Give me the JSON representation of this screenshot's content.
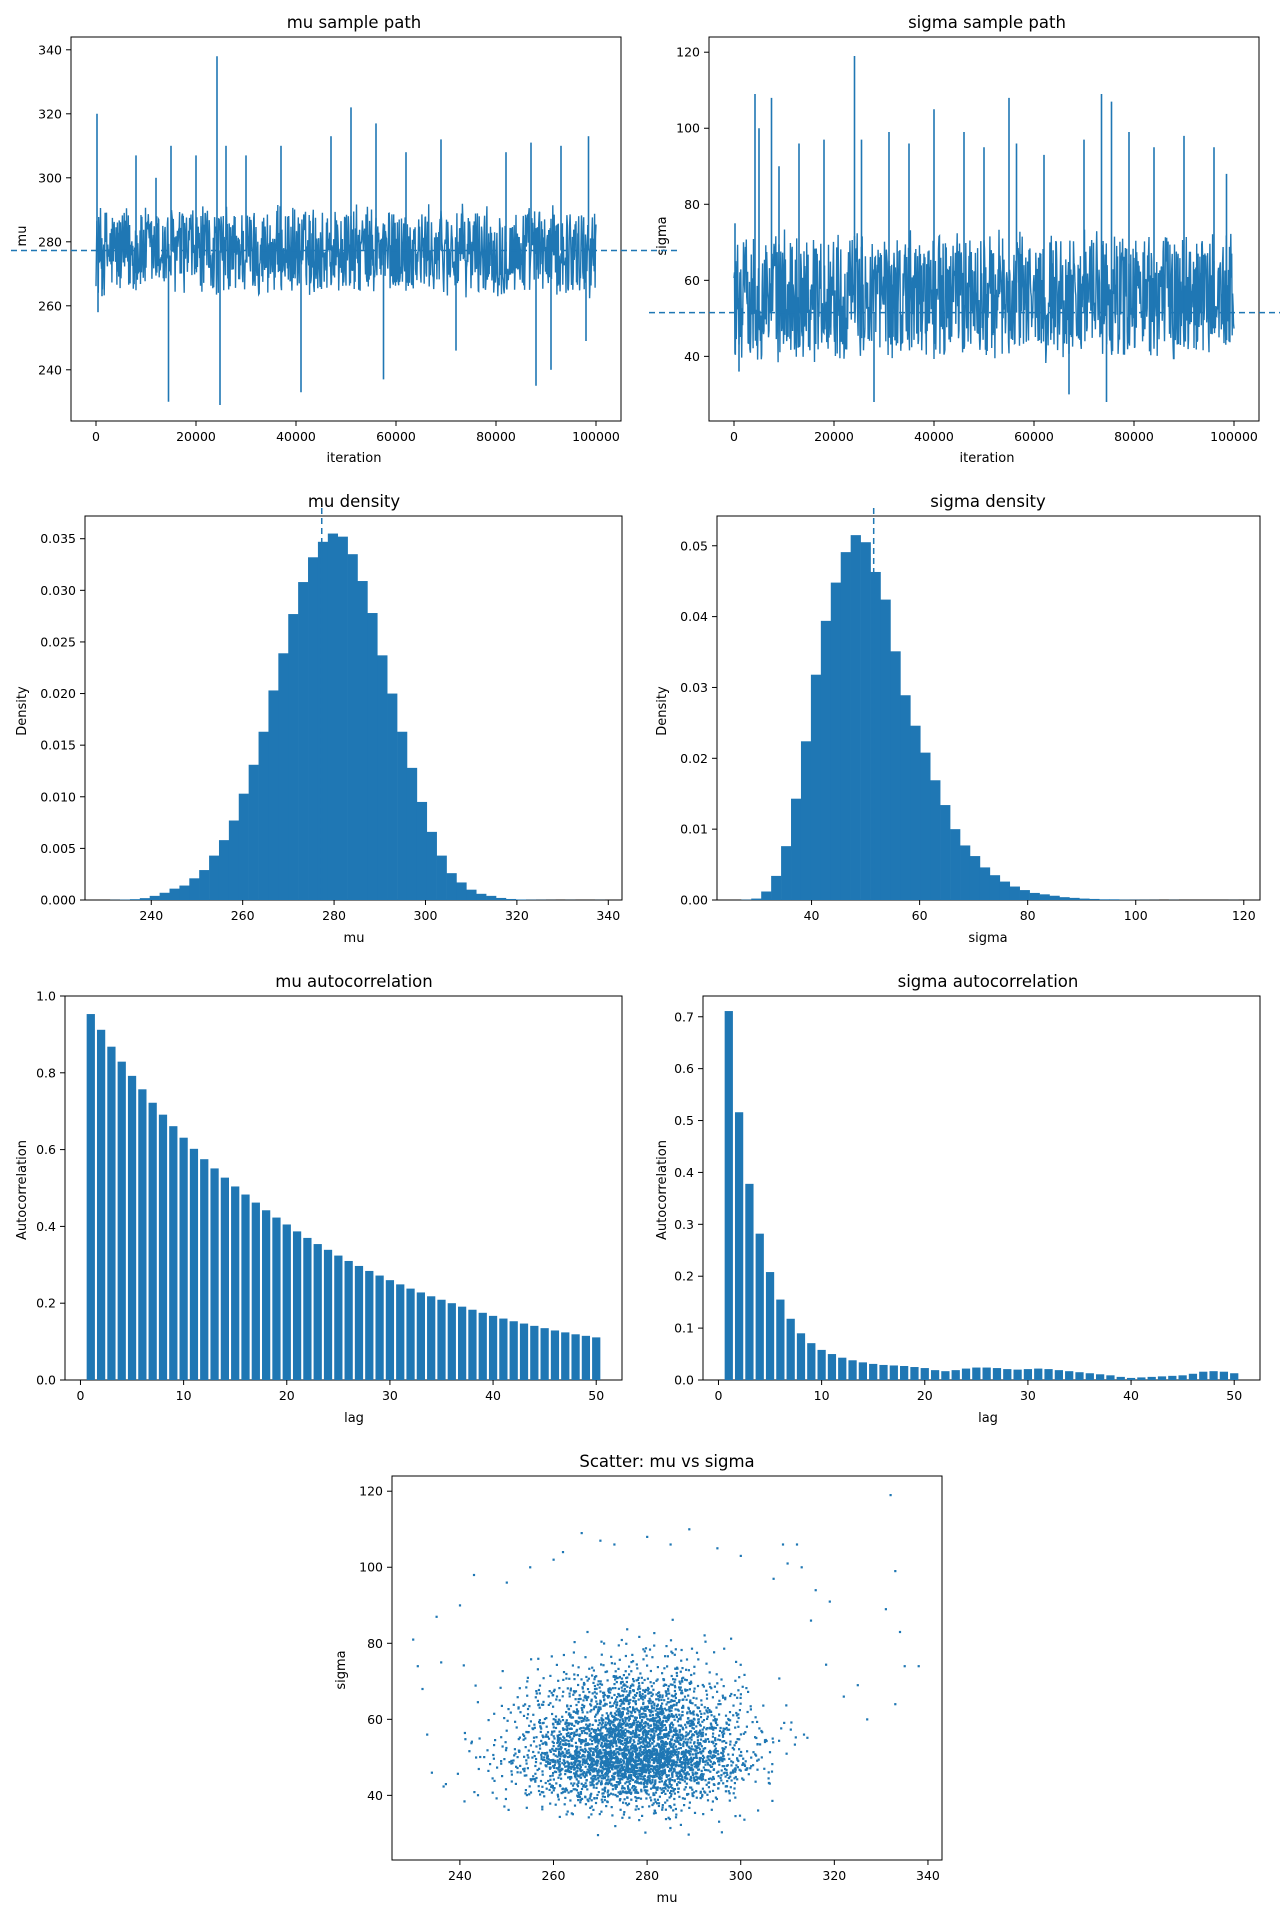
{
  "chart_data": [
    {
      "type": "line",
      "title": "mu sample path",
      "xlabel": "iteration",
      "ylabel": "mu",
      "xlim": [
        -5000,
        105000
      ],
      "ylim": [
        224,
        344
      ],
      "xticks": [
        0,
        20000,
        40000,
        60000,
        80000,
        100000
      ],
      "yticks": [
        240,
        260,
        280,
        300,
        320,
        340
      ],
      "mean": 277.3,
      "band": {
        "lo": 262,
        "hi": 292
      },
      "spikes": [
        [
          200,
          320
        ],
        [
          400,
          258
        ],
        [
          1200,
          263
        ],
        [
          8000,
          307
        ],
        [
          12000,
          300
        ],
        [
          15000,
          310
        ],
        [
          14500,
          230
        ],
        [
          20000,
          307
        ],
        [
          24200,
          338
        ],
        [
          24800,
          229
        ],
        [
          26000,
          310
        ],
        [
          30000,
          307
        ],
        [
          37000,
          310
        ],
        [
          41000,
          233
        ],
        [
          47000,
          313
        ],
        [
          51000,
          322
        ],
        [
          56000,
          317
        ],
        [
          57500,
          237
        ],
        [
          62000,
          308
        ],
        [
          69000,
          312
        ],
        [
          72000,
          246
        ],
        [
          82000,
          308
        ],
        [
          87000,
          311
        ],
        [
          88000,
          235
        ],
        [
          91000,
          240
        ],
        [
          93000,
          310
        ],
        [
          98500,
          313
        ],
        [
          98000,
          249
        ]
      ],
      "n_iter": 100000
    },
    {
      "type": "line",
      "title": "sigma sample path",
      "xlabel": "iteration",
      "ylabel": "sigma",
      "xlim": [
        -5000,
        105000
      ],
      "ylim": [
        23,
        124
      ],
      "xticks": [
        0,
        20000,
        40000,
        60000,
        80000,
        100000
      ],
      "yticks": [
        40,
        60,
        80,
        100,
        120
      ],
      "mean": 51.5,
      "band": {
        "lo": 38,
        "hi": 74
      },
      "spikes": [
        [
          200,
          75
        ],
        [
          1000,
          36
        ],
        [
          4200,
          109
        ],
        [
          5000,
          100
        ],
        [
          7500,
          108
        ],
        [
          9000,
          90
        ],
        [
          13000,
          96
        ],
        [
          18000,
          97
        ],
        [
          24100,
          119
        ],
        [
          25500,
          97
        ],
        [
          28000,
          28
        ],
        [
          31000,
          99
        ],
        [
          35000,
          96
        ],
        [
          40000,
          105
        ],
        [
          46000,
          99
        ],
        [
          50000,
          95
        ],
        [
          55000,
          108
        ],
        [
          56500,
          96
        ],
        [
          62000,
          93
        ],
        [
          67000,
          30
        ],
        [
          70000,
          97
        ],
        [
          73500,
          109
        ],
        [
          74500,
          28
        ],
        [
          75500,
          107
        ],
        [
          79000,
          99
        ],
        [
          84000,
          95
        ],
        [
          90000,
          98
        ],
        [
          96000,
          95
        ],
        [
          98500,
          88
        ]
      ],
      "n_iter": 100000
    },
    {
      "type": "bar",
      "title": "mu density",
      "xlabel": "mu",
      "ylabel": "Density",
      "xlim": [
        225.5,
        343
      ],
      "ylim": [
        0,
        0.0372
      ],
      "xticks": [
        240,
        260,
        280,
        300,
        320,
        340
      ],
      "yticks": [
        0.0,
        0.005,
        0.01,
        0.015,
        0.02,
        0.025,
        0.03,
        0.035
      ],
      "ytick_labels": [
        "0.000",
        "0.005",
        "0.010",
        "0.015",
        "0.020",
        "0.025",
        "0.030",
        "0.035"
      ],
      "bin_start": 231.0,
      "bin_width": 2.165,
      "values": [
        2e-05,
        4e-05,
        8e-05,
        0.00018,
        0.0004,
        0.0007,
        0.0011,
        0.0014,
        0.0021,
        0.0029,
        0.0043,
        0.0058,
        0.0077,
        0.0103,
        0.0131,
        0.0163,
        0.0203,
        0.0239,
        0.0277,
        0.0308,
        0.0332,
        0.0347,
        0.0355,
        0.0352,
        0.0335,
        0.0309,
        0.0278,
        0.0237,
        0.02,
        0.0163,
        0.0128,
        0.0095,
        0.0066,
        0.0043,
        0.0026,
        0.0017,
        0.001,
        0.0006,
        0.0004,
        0.0002,
        0.0001,
        5e-05,
        3e-05,
        2e-05,
        1e-05,
        0.0,
        1e-05,
        0.0,
        0.0,
        1e-05
      ],
      "mean": 277.3
    },
    {
      "type": "bar",
      "title": "sigma density",
      "xlabel": "sigma",
      "ylabel": "Density",
      "xlim": [
        22.5,
        123
      ],
      "ylim": [
        0,
        0.0542
      ],
      "xticks": [
        40,
        60,
        80,
        100,
        120
      ],
      "yticks": [
        0.0,
        0.01,
        0.02,
        0.03,
        0.04,
        0.05
      ],
      "ytick_labels": [
        "0.00",
        "0.01",
        "0.02",
        "0.03",
        "0.04",
        "0.05"
      ],
      "bin_start": 27.0,
      "bin_width": 1.84,
      "values": [
        5e-05,
        0.0002,
        0.0012,
        0.0034,
        0.0076,
        0.0143,
        0.0224,
        0.0318,
        0.0394,
        0.0448,
        0.0491,
        0.0515,
        0.0505,
        0.0463,
        0.0424,
        0.0351,
        0.0289,
        0.0246,
        0.0208,
        0.0169,
        0.0134,
        0.01,
        0.0077,
        0.0062,
        0.0046,
        0.0035,
        0.0026,
        0.0019,
        0.0014,
        0.001,
        0.0008,
        0.0006,
        0.0004,
        0.0003,
        0.0002,
        0.00015,
        0.0001,
        0.0001,
        5e-05,
        4e-05,
        3e-05,
        2e-05,
        0.0,
        2e-05,
        0.0,
        0.0,
        0.0,
        0.0,
        0.0,
        1e-05
      ],
      "mean": 51.5
    },
    {
      "type": "bar",
      "title": "mu autocorrelation",
      "xlabel": "lag",
      "ylabel": "Autocorrelation",
      "xlim": [
        -1.5,
        52.5
      ],
      "ylim": [
        0,
        1.0
      ],
      "xticks": [
        0,
        10,
        20,
        30,
        40,
        50
      ],
      "yticks": [
        0.0,
        0.2,
        0.4,
        0.6,
        0.8,
        1.0
      ],
      "ytick_labels": [
        "0.0",
        "0.2",
        "0.4",
        "0.6",
        "0.8",
        "1.0"
      ],
      "lags": [
        1,
        2,
        3,
        4,
        5,
        6,
        7,
        8,
        9,
        10,
        11,
        12,
        13,
        14,
        15,
        16,
        17,
        18,
        19,
        20,
        21,
        22,
        23,
        24,
        25,
        26,
        27,
        28,
        29,
        30,
        31,
        32,
        33,
        34,
        35,
        36,
        37,
        38,
        39,
        40,
        41,
        42,
        43,
        44,
        45,
        46,
        47,
        48,
        49,
        50
      ],
      "values": [
        0.953,
        0.912,
        0.868,
        0.829,
        0.792,
        0.757,
        0.722,
        0.691,
        0.661,
        0.631,
        0.602,
        0.575,
        0.551,
        0.527,
        0.504,
        0.483,
        0.462,
        0.442,
        0.423,
        0.405,
        0.387,
        0.37,
        0.354,
        0.339,
        0.324,
        0.31,
        0.297,
        0.284,
        0.272,
        0.26,
        0.249,
        0.238,
        0.228,
        0.218,
        0.209,
        0.2,
        0.191,
        0.183,
        0.175,
        0.167,
        0.16,
        0.153,
        0.147,
        0.141,
        0.135,
        0.129,
        0.124,
        0.119,
        0.115,
        0.111
      ]
    },
    {
      "type": "bar",
      "title": "sigma autocorrelation",
      "xlabel": "lag",
      "ylabel": "Autocorrelation",
      "xlim": [
        -1.5,
        52.5
      ],
      "ylim": [
        0,
        0.74
      ],
      "xticks": [
        0,
        10,
        20,
        30,
        40,
        50
      ],
      "yticks": [
        0.0,
        0.1,
        0.2,
        0.3,
        0.4,
        0.5,
        0.6,
        0.7
      ],
      "ytick_labels": [
        "0.0",
        "0.1",
        "0.2",
        "0.3",
        "0.4",
        "0.5",
        "0.6",
        "0.7"
      ],
      "lags": [
        1,
        2,
        3,
        4,
        5,
        6,
        7,
        8,
        9,
        10,
        11,
        12,
        13,
        14,
        15,
        16,
        17,
        18,
        19,
        20,
        21,
        22,
        23,
        24,
        25,
        26,
        27,
        28,
        29,
        30,
        31,
        32,
        33,
        34,
        35,
        36,
        37,
        38,
        39,
        40,
        41,
        42,
        43,
        44,
        45,
        46,
        47,
        48,
        49,
        50
      ],
      "values": [
        0.711,
        0.516,
        0.378,
        0.282,
        0.208,
        0.155,
        0.118,
        0.09,
        0.071,
        0.058,
        0.05,
        0.043,
        0.038,
        0.034,
        0.031,
        0.029,
        0.028,
        0.027,
        0.025,
        0.023,
        0.019,
        0.017,
        0.019,
        0.022,
        0.024,
        0.024,
        0.023,
        0.021,
        0.02,
        0.021,
        0.022,
        0.021,
        0.019,
        0.017,
        0.015,
        0.013,
        0.011,
        0.009,
        0.006,
        0.004,
        0.005,
        0.006,
        0.007,
        0.008,
        0.009,
        0.012,
        0.016,
        0.017,
        0.016,
        0.013
      ]
    },
    {
      "type": "scatter",
      "title": "Scatter: mu vs sigma",
      "xlabel": "mu",
      "ylabel": "sigma",
      "xlim": [
        225.5,
        343
      ],
      "ylim": [
        23,
        124
      ],
      "xticks": [
        240,
        260,
        280,
        300,
        320,
        340
      ],
      "yticks": [
        40,
        60,
        80,
        100,
        120
      ],
      "center": {
        "mu": 277.3,
        "sigma": 51.5
      },
      "outliers": [
        [
          332,
          119
        ],
        [
          333,
          99
        ],
        [
          334,
          83
        ],
        [
          338,
          74
        ],
        [
          335,
          74
        ],
        [
          333,
          64
        ],
        [
          331,
          89
        ],
        [
          316,
          94
        ],
        [
          312,
          106
        ],
        [
          309,
          106
        ],
        [
          289,
          110
        ],
        [
          285,
          106
        ],
        [
          280,
          108
        ],
        [
          266,
          109
        ],
        [
          273,
          106
        ],
        [
          260,
          102
        ],
        [
          243,
          98
        ],
        [
          235,
          87
        ],
        [
          236,
          75
        ],
        [
          230,
          81
        ],
        [
          231,
          74
        ],
        [
          233,
          56
        ],
        [
          234,
          46
        ],
        [
          237,
          43
        ],
        [
          325,
          69
        ],
        [
          327,
          60
        ],
        [
          322,
          66
        ],
        [
          313,
          100
        ],
        [
          310,
          101
        ],
        [
          300,
          103
        ],
        [
          295,
          105
        ],
        [
          270,
          107
        ],
        [
          255,
          100
        ],
        [
          250,
          96
        ],
        [
          240,
          90
        ],
        [
          232,
          68
        ],
        [
          319,
          91
        ],
        [
          315,
          86
        ],
        [
          307,
          97
        ],
        [
          262,
          104
        ]
      ]
    }
  ]
}
